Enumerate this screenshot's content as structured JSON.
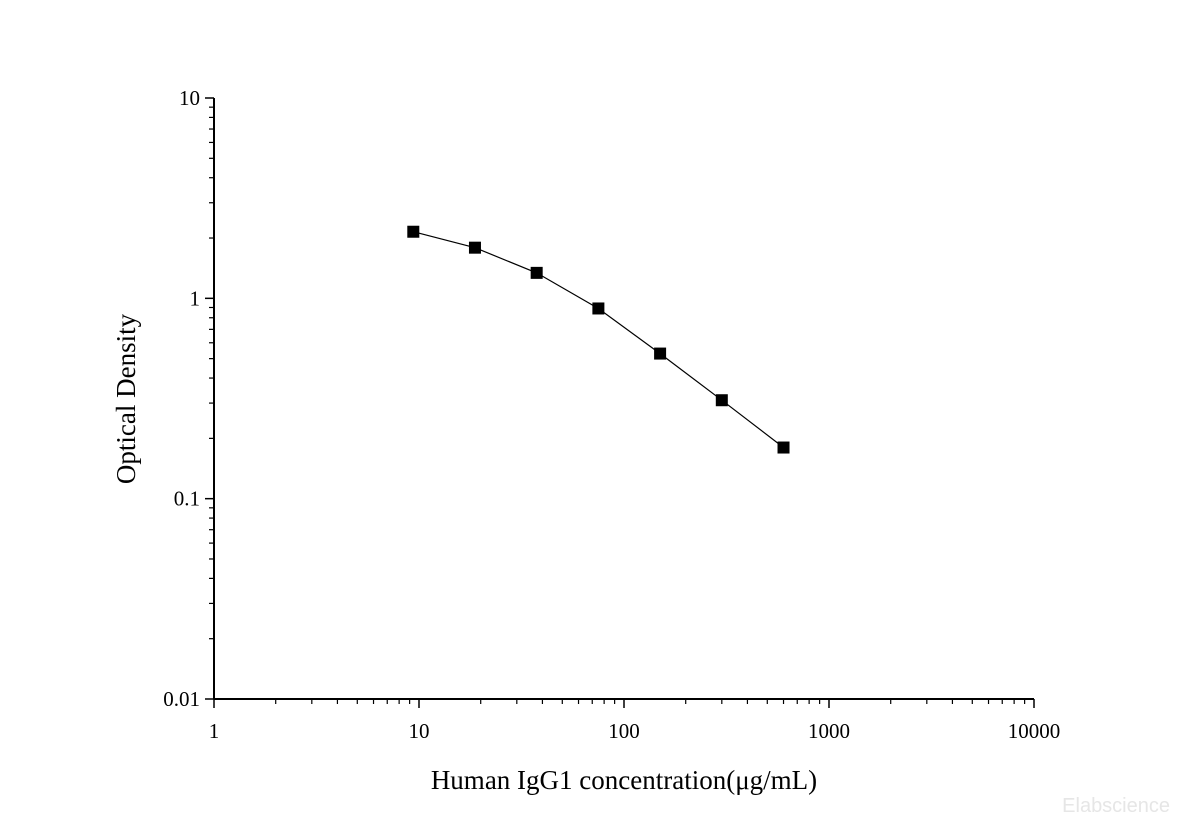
{
  "chart_data": {
    "type": "scatter",
    "xlabel": "Human IgG1 concentration(μg/mL)",
    "ylabel": "Optical Density",
    "xscale": "log",
    "yscale": "log",
    "xlim": [
      1,
      10000
    ],
    "ylim": [
      0.01,
      10
    ],
    "xticks": [
      1,
      10,
      100,
      1000,
      10000
    ],
    "xtick_labels": [
      "1",
      "10",
      "100",
      "1000",
      "10000"
    ],
    "yticks": [
      0.01,
      0.1,
      1,
      10
    ],
    "ytick_labels": [
      "0.01",
      "0.1",
      "1",
      "10"
    ],
    "grid": false,
    "marker": "square",
    "connected": true,
    "color": "#000000",
    "series": [
      {
        "x": [
          9.38,
          18.75,
          37.5,
          75,
          150,
          300,
          600
        ],
        "y": [
          2.15,
          1.79,
          1.34,
          0.89,
          0.53,
          0.31,
          0.18
        ]
      }
    ]
  },
  "watermark": "Elabscience"
}
